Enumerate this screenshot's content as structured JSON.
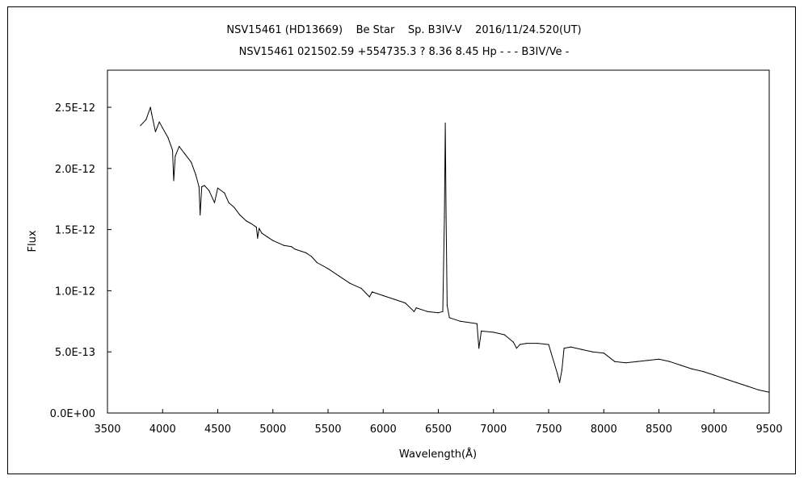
{
  "chart_data": {
    "type": "line",
    "title": "NSV15461 (HD13669)    Be Star    Sp. B3IV-V    2016/11/24.520(UT)",
    "subtitle": "NSV15461 021502.59 +554735.3 ? 8.36 8.45 Hp - - - B3IV/Ve -",
    "xlabel": "Wavelength(Å)",
    "ylabel": "Flux",
    "xlim": [
      3500,
      9500
    ],
    "ylim": [
      0,
      2.5e-12
    ],
    "x_ticks": [
      3500,
      4000,
      4500,
      5000,
      5500,
      6000,
      6500,
      7000,
      7500,
      8000,
      8500,
      9000,
      9500
    ],
    "x_tick_labels": [
      "3500",
      "4000",
      "4500",
      "5000",
      "5500",
      "6000",
      "6500",
      "7000",
      "7500",
      "8000",
      "8500",
      "9000",
      "9500"
    ],
    "y_ticks": [
      0,
      5e-13,
      1e-12,
      1.5e-12,
      2e-12,
      2.5e-12
    ],
    "y_tick_labels": [
      "0.0E+00",
      "5.0E-13",
      "1.0E-12",
      "1.5E-12",
      "2.0E-12",
      "2.5E-12"
    ],
    "grid": false,
    "series": [
      {
        "color": "#000000",
        "x": [
          3800,
          3850,
          3890,
          3900,
          3935,
          3970,
          4000,
          4050,
          4090,
          4101,
          4115,
          4150,
          4200,
          4260,
          4300,
          4330,
          4340,
          4355,
          4380,
          4420,
          4471,
          4500,
          4560,
          4600,
          4650,
          4700,
          4760,
          4800,
          4850,
          4861,
          4875,
          4900,
          4950,
          5000,
          5100,
          5169,
          5200,
          5300,
          5350,
          5400,
          5500,
          5600,
          5700,
          5800,
          5876,
          5900,
          6000,
          6100,
          6200,
          6280,
          6300,
          6400,
          6500,
          6540,
          6555,
          6563,
          6570,
          6580,
          6600,
          6700,
          6850,
          6868,
          6890,
          7000,
          7100,
          7180,
          7210,
          7240,
          7300,
          7400,
          7500,
          7580,
          7600,
          7620,
          7640,
          7700,
          7800,
          7900,
          8000,
          8100,
          8200,
          8300,
          8400,
          8500,
          8600,
          8700,
          8800,
          8900,
          9000,
          9100,
          9200,
          9300,
          9400,
          9500
        ],
        "values": [
          2.35e-12,
          2.4e-12,
          2.5e-12,
          2.45e-12,
          2.3e-12,
          2.38e-12,
          2.33e-12,
          2.25e-12,
          2.15e-12,
          1.9e-12,
          2.1e-12,
          2.18e-12,
          2.12e-12,
          2.05e-12,
          1.95e-12,
          1.85e-12,
          1.62e-12,
          1.85e-12,
          1.86e-12,
          1.82e-12,
          1.72e-12,
          1.84e-12,
          1.8e-12,
          1.72e-12,
          1.68e-12,
          1.62e-12,
          1.57e-12,
          1.55e-12,
          1.52e-12,
          1.43e-12,
          1.51e-12,
          1.47e-12,
          1.44e-12,
          1.41e-12,
          1.37e-12,
          1.36e-12,
          1.34e-12,
          1.31e-12,
          1.28e-12,
          1.23e-12,
          1.18e-12,
          1.12e-12,
          1.06e-12,
          1.02e-12,
          9.5e-13,
          9.9e-13,
          9.6e-13,
          9.3e-13,
          9e-13,
          8.3e-13,
          8.6e-13,
          8.3e-13,
          8.2e-13,
          8.3e-13,
          1.6e-12,
          2.37e-12,
          1.6e-12,
          8.8e-13,
          7.8e-13,
          7.5e-13,
          7.3e-13,
          5.3e-13,
          6.7e-13,
          6.6e-13,
          6.4e-13,
          5.8e-13,
          5.3e-13,
          5.6e-13,
          5.7e-13,
          5.7e-13,
          5.6e-13,
          3.2e-13,
          2.5e-13,
          3.5e-13,
          5.3e-13,
          5.4e-13,
          5.2e-13,
          5e-13,
          4.9e-13,
          4.2e-13,
          4.1e-13,
          4.2e-13,
          4.3e-13,
          4.4e-13,
          4.2e-13,
          3.9e-13,
          3.6e-13,
          3.4e-13,
          3.1e-13,
          2.8e-13,
          2.5e-13,
          2.2e-13,
          1.9e-13,
          1.7e-13
        ]
      }
    ]
  }
}
